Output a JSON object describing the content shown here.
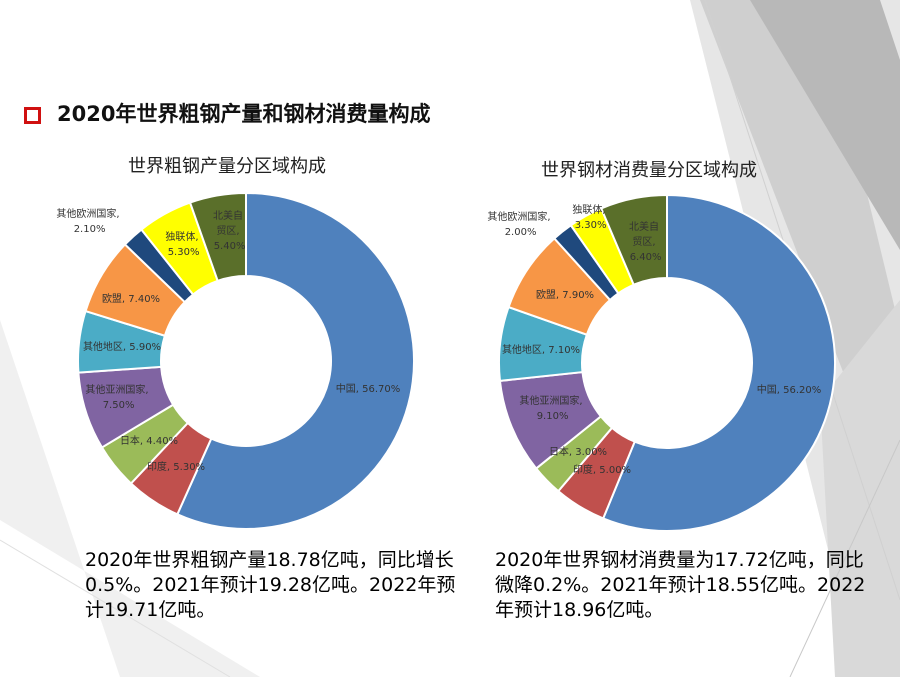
{
  "slide": {
    "title": "2020年世界粗钢产量和钢材消费量构成"
  },
  "colors": {
    "bullet": "#d01010",
    "china": "#4f81bd",
    "india": "#c0504d",
    "japan": "#9bbb59",
    "other_asia": "#8064a2",
    "other_region": "#4bacc6",
    "eu": "#f79646",
    "other_europe": "#1f497d",
    "cis": "#ffff00",
    "nafta": "#5a6f2a"
  },
  "chart_data": [
    {
      "type": "pie",
      "donut": true,
      "title": "世界粗钢产量分区域构成",
      "slices": [
        {
          "name": "中国",
          "value": 56.7,
          "label": "中国, 56.70%",
          "color": "#4f81bd"
        },
        {
          "name": "印度",
          "value": 5.3,
          "label": "印度, 5.30%",
          "color": "#c0504d"
        },
        {
          "name": "日本",
          "value": 4.4,
          "label": "日本, 4.40%",
          "color": "#9bbb59"
        },
        {
          "name": "其他亚洲国家",
          "value": 7.5,
          "label": "其他亚洲国家, 7.50%",
          "color": "#8064a2"
        },
        {
          "name": "其他地区",
          "value": 5.9,
          "label": "其他地区, 5.90%",
          "color": "#4bacc6"
        },
        {
          "name": "欧盟",
          "value": 7.4,
          "label": "欧盟, 7.40%",
          "color": "#f79646"
        },
        {
          "name": "其他欧洲国家",
          "value": 2.1,
          "label": "其他欧洲国家, 2.10%",
          "color": "#1f497d"
        },
        {
          "name": "独联体",
          "value": 5.3,
          "label": "独联体, 5.30%",
          "color": "#ffff00"
        },
        {
          "name": "北美自贸区",
          "value": 5.4,
          "label": "北美自贸区, 5.40%",
          "color": "#5a6f2a"
        }
      ],
      "note": "2020年世界粗钢产量18.78亿吨，同比增长0.5%。2021年预计19.28亿吨。2022年预计19.71亿吨。"
    },
    {
      "type": "pie",
      "donut": true,
      "title": "世界钢材消费量分区域构成",
      "slices": [
        {
          "name": "中国",
          "value": 56.2,
          "label": "中国, 56.20%",
          "color": "#4f81bd"
        },
        {
          "name": "印度",
          "value": 5.0,
          "label": "印度, 5.00%",
          "color": "#c0504d"
        },
        {
          "name": "日本",
          "value": 3.0,
          "label": "日本, 3.00%",
          "color": "#9bbb59"
        },
        {
          "name": "其他亚洲国家",
          "value": 9.1,
          "label": "其他亚洲国家, 9.10%",
          "color": "#8064a2"
        },
        {
          "name": "其他地区",
          "value": 7.1,
          "label": "其他地区, 7.10%",
          "color": "#4bacc6"
        },
        {
          "name": "欧盟",
          "value": 7.9,
          "label": "欧盟, 7.90%",
          "color": "#f79646"
        },
        {
          "name": "其他欧洲国家",
          "value": 2.0,
          "label": "其他欧洲国家, 2.00%",
          "color": "#1f497d"
        },
        {
          "name": "独联体",
          "value": 3.3,
          "label": "独联体, 3.30%",
          "color": "#ffff00"
        },
        {
          "name": "北美自贸区",
          "value": 6.4,
          "label": "北美自贸区, 6.40%",
          "color": "#5a6f2a"
        }
      ],
      "note": "2020年世界钢材消费量为17.72亿吨，同比微降0.2%。2021年预计18.55亿吨。2022年预计18.96亿吨。"
    }
  ]
}
